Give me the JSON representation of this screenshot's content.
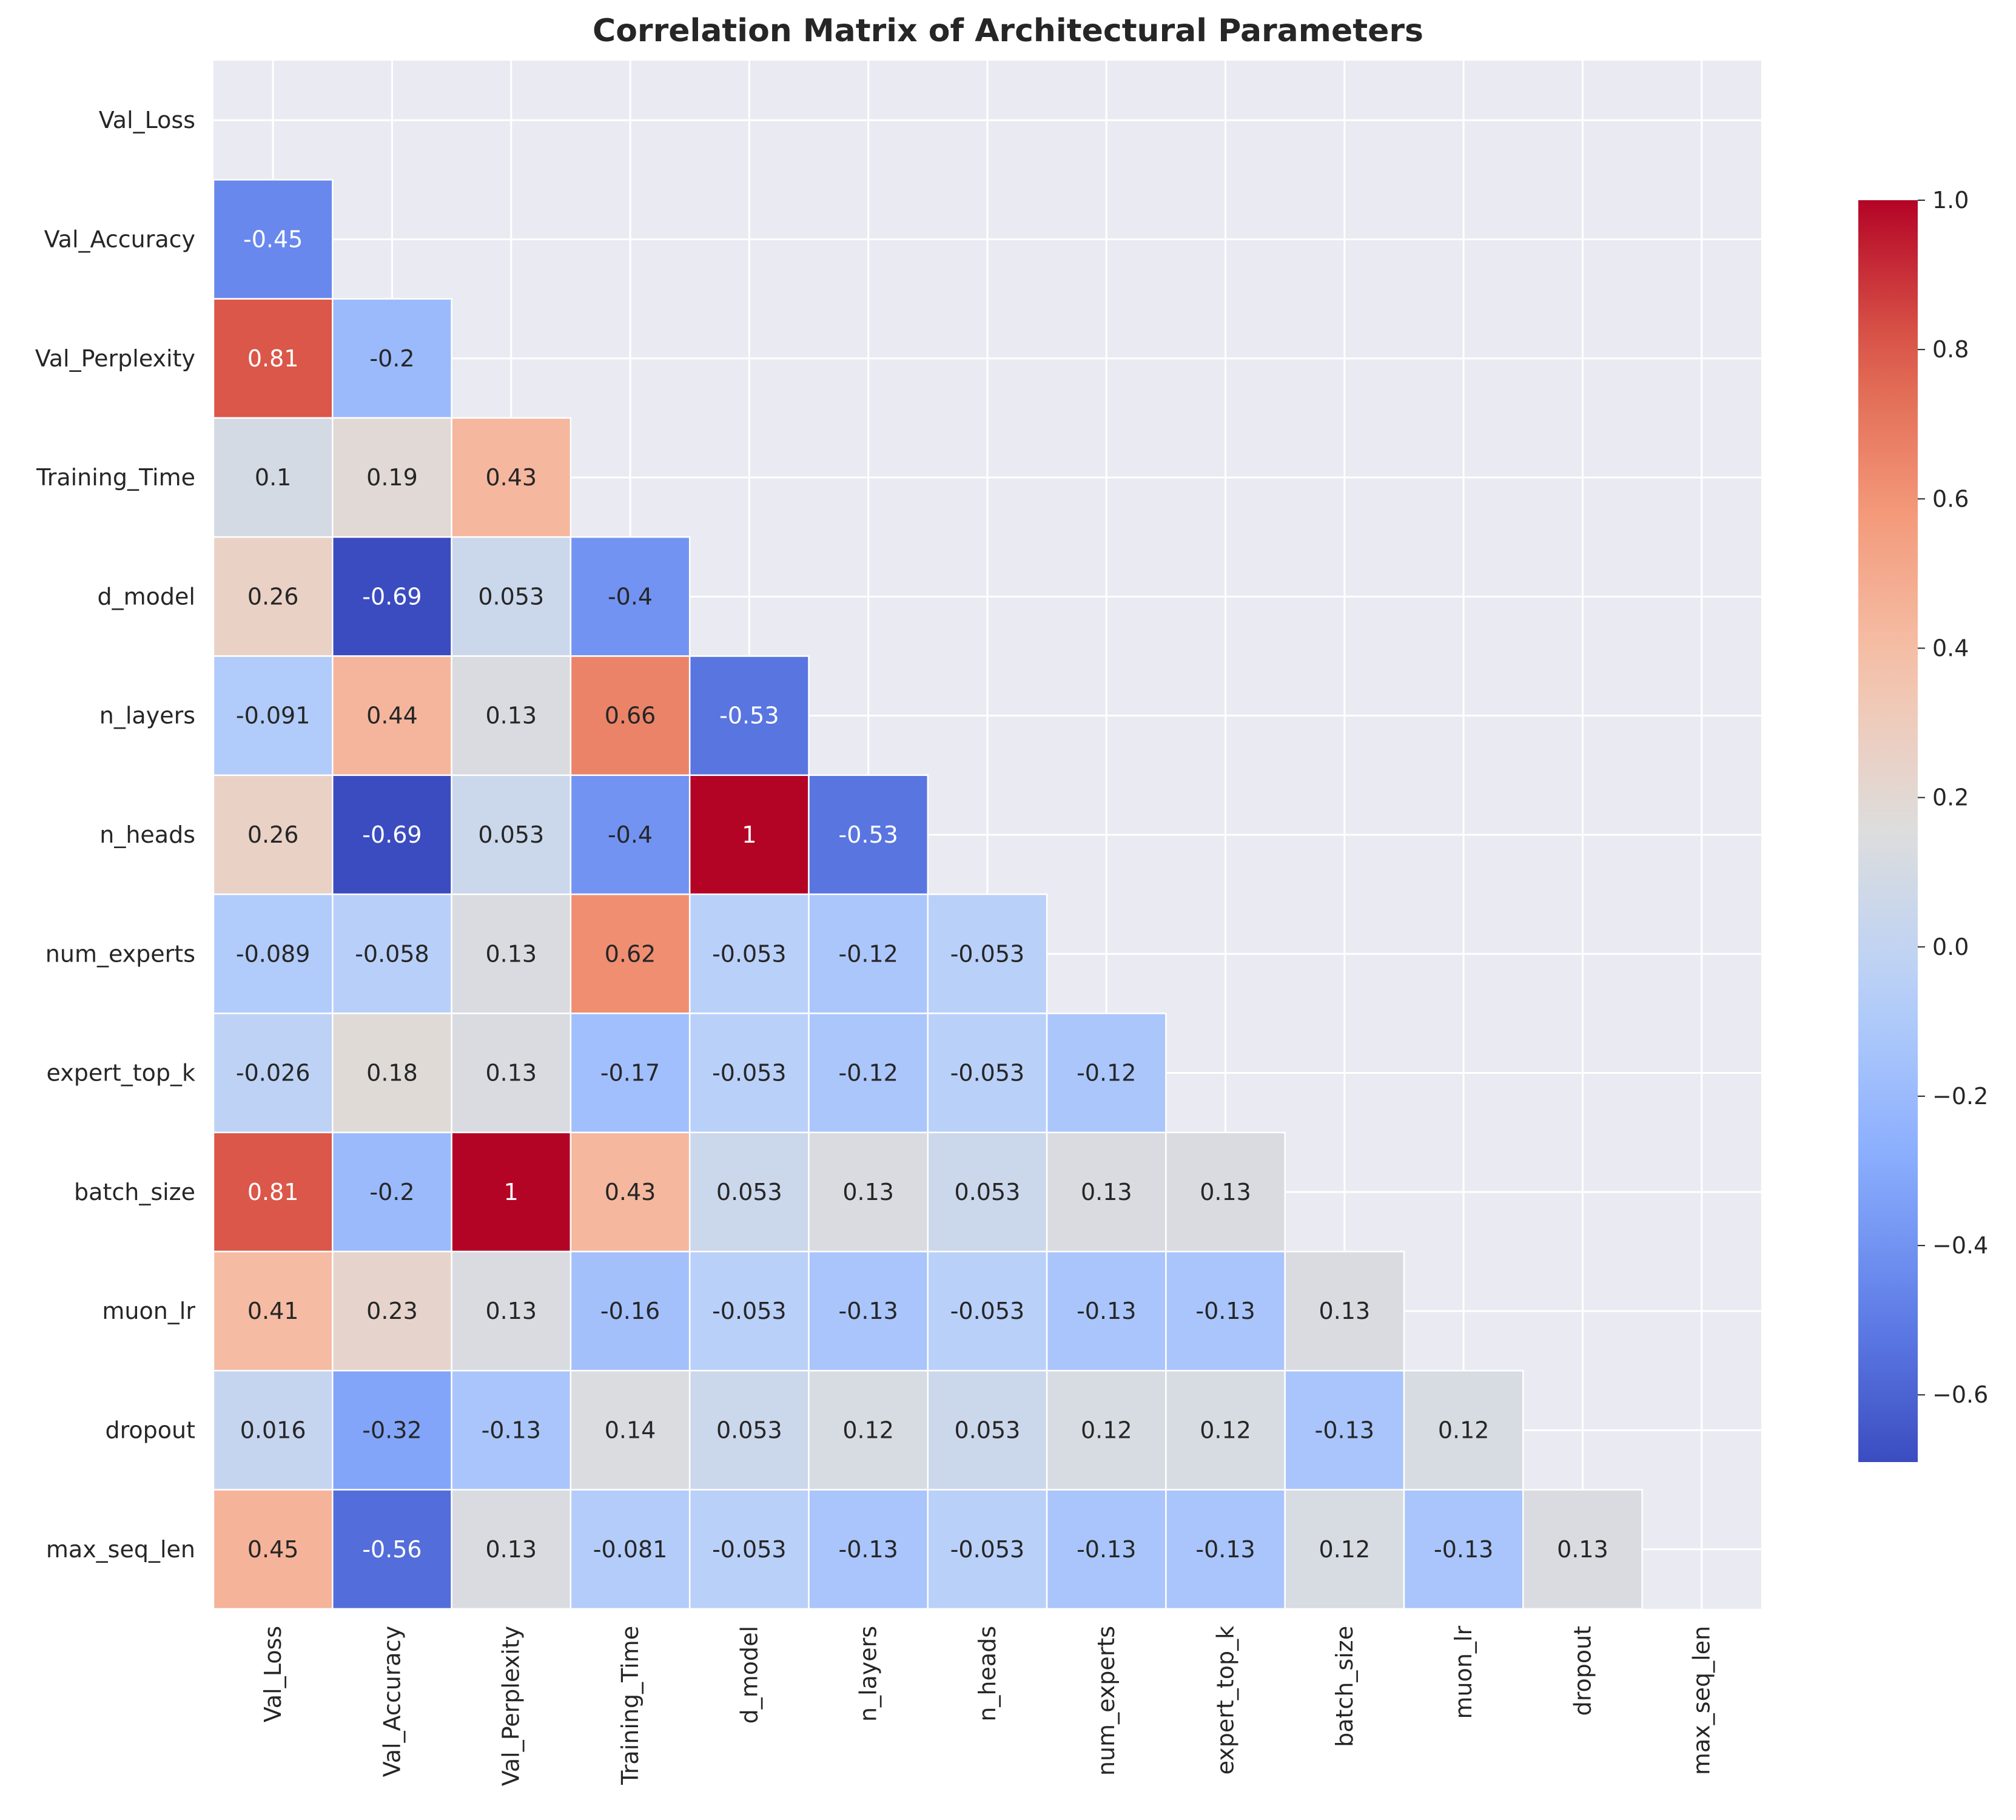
{
  "chart_data": {
    "type": "heatmap",
    "title": "Correlation Matrix of Architectural Parameters",
    "labels": [
      "Val_Loss",
      "Val_Accuracy",
      "Val_Perplexity",
      "Training_Time",
      "d_model",
      "n_layers",
      "n_heads",
      "num_experts",
      "expert_top_k",
      "batch_size",
      "muon_lr",
      "dropout",
      "max_seq_len"
    ],
    "mask": "upper-triangle-including-diagonal",
    "cells": [
      {
        "row": "Val_Accuracy",
        "col": "Val_Loss",
        "value": -0.45,
        "label": "-0.45"
      },
      {
        "row": "Val_Perplexity",
        "col": "Val_Loss",
        "value": 0.81,
        "label": "0.81"
      },
      {
        "row": "Val_Perplexity",
        "col": "Val_Accuracy",
        "value": -0.2,
        "label": "-0.2"
      },
      {
        "row": "Training_Time",
        "col": "Val_Loss",
        "value": 0.1,
        "label": "0.1"
      },
      {
        "row": "Training_Time",
        "col": "Val_Accuracy",
        "value": 0.19,
        "label": "0.19"
      },
      {
        "row": "Training_Time",
        "col": "Val_Perplexity",
        "value": 0.43,
        "label": "0.43"
      },
      {
        "row": "d_model",
        "col": "Val_Loss",
        "value": 0.26,
        "label": "0.26"
      },
      {
        "row": "d_model",
        "col": "Val_Accuracy",
        "value": -0.69,
        "label": "-0.69"
      },
      {
        "row": "d_model",
        "col": "Val_Perplexity",
        "value": 0.053,
        "label": "0.053"
      },
      {
        "row": "d_model",
        "col": "Training_Time",
        "value": -0.4,
        "label": "-0.4"
      },
      {
        "row": "n_layers",
        "col": "Val_Loss",
        "value": -0.091,
        "label": "-0.091"
      },
      {
        "row": "n_layers",
        "col": "Val_Accuracy",
        "value": 0.44,
        "label": "0.44"
      },
      {
        "row": "n_layers",
        "col": "Val_Perplexity",
        "value": 0.13,
        "label": "0.13"
      },
      {
        "row": "n_layers",
        "col": "Training_Time",
        "value": 0.66,
        "label": "0.66"
      },
      {
        "row": "n_layers",
        "col": "d_model",
        "value": -0.53,
        "label": "-0.53"
      },
      {
        "row": "n_heads",
        "col": "Val_Loss",
        "value": 0.26,
        "label": "0.26"
      },
      {
        "row": "n_heads",
        "col": "Val_Accuracy",
        "value": -0.69,
        "label": "-0.69"
      },
      {
        "row": "n_heads",
        "col": "Val_Perplexity",
        "value": 0.053,
        "label": "0.053"
      },
      {
        "row": "n_heads",
        "col": "Training_Time",
        "value": -0.4,
        "label": "-0.4"
      },
      {
        "row": "n_heads",
        "col": "d_model",
        "value": 1,
        "label": "1"
      },
      {
        "row": "n_heads",
        "col": "n_layers",
        "value": -0.53,
        "label": "-0.53"
      },
      {
        "row": "num_experts",
        "col": "Val_Loss",
        "value": -0.089,
        "label": "-0.089"
      },
      {
        "row": "num_experts",
        "col": "Val_Accuracy",
        "value": -0.058,
        "label": "-0.058"
      },
      {
        "row": "num_experts",
        "col": "Val_Perplexity",
        "value": 0.13,
        "label": "0.13"
      },
      {
        "row": "num_experts",
        "col": "Training_Time",
        "value": 0.62,
        "label": "0.62"
      },
      {
        "row": "num_experts",
        "col": "d_model",
        "value": -0.053,
        "label": "-0.053"
      },
      {
        "row": "num_experts",
        "col": "n_layers",
        "value": -0.12,
        "label": "-0.12"
      },
      {
        "row": "num_experts",
        "col": "n_heads",
        "value": -0.053,
        "label": "-0.053"
      },
      {
        "row": "expert_top_k",
        "col": "Val_Loss",
        "value": -0.026,
        "label": "-0.026"
      },
      {
        "row": "expert_top_k",
        "col": "Val_Accuracy",
        "value": 0.18,
        "label": "0.18"
      },
      {
        "row": "expert_top_k",
        "col": "Val_Perplexity",
        "value": 0.13,
        "label": "0.13"
      },
      {
        "row": "expert_top_k",
        "col": "Training_Time",
        "value": -0.17,
        "label": "-0.17"
      },
      {
        "row": "expert_top_k",
        "col": "d_model",
        "value": -0.053,
        "label": "-0.053"
      },
      {
        "row": "expert_top_k",
        "col": "n_layers",
        "value": -0.12,
        "label": "-0.12"
      },
      {
        "row": "expert_top_k",
        "col": "n_heads",
        "value": -0.053,
        "label": "-0.053"
      },
      {
        "row": "expert_top_k",
        "col": "num_experts",
        "value": -0.12,
        "label": "-0.12"
      },
      {
        "row": "batch_size",
        "col": "Val_Loss",
        "value": 0.81,
        "label": "0.81"
      },
      {
        "row": "batch_size",
        "col": "Val_Accuracy",
        "value": -0.2,
        "label": "-0.2"
      },
      {
        "row": "batch_size",
        "col": "Val_Perplexity",
        "value": 1,
        "label": "1"
      },
      {
        "row": "batch_size",
        "col": "Training_Time",
        "value": 0.43,
        "label": "0.43"
      },
      {
        "row": "batch_size",
        "col": "d_model",
        "value": 0.053,
        "label": "0.053"
      },
      {
        "row": "batch_size",
        "col": "n_layers",
        "value": 0.13,
        "label": "0.13"
      },
      {
        "row": "batch_size",
        "col": "n_heads",
        "value": 0.053,
        "label": "0.053"
      },
      {
        "row": "batch_size",
        "col": "num_experts",
        "value": 0.13,
        "label": "0.13"
      },
      {
        "row": "batch_size",
        "col": "expert_top_k",
        "value": 0.13,
        "label": "0.13"
      },
      {
        "row": "muon_lr",
        "col": "Val_Loss",
        "value": 0.41,
        "label": "0.41"
      },
      {
        "row": "muon_lr",
        "col": "Val_Accuracy",
        "value": 0.23,
        "label": "0.23"
      },
      {
        "row": "muon_lr",
        "col": "Val_Perplexity",
        "value": 0.13,
        "label": "0.13"
      },
      {
        "row": "muon_lr",
        "col": "Training_Time",
        "value": -0.16,
        "label": "-0.16"
      },
      {
        "row": "muon_lr",
        "col": "d_model",
        "value": -0.053,
        "label": "-0.053"
      },
      {
        "row": "muon_lr",
        "col": "n_layers",
        "value": -0.13,
        "label": "-0.13"
      },
      {
        "row": "muon_lr",
        "col": "n_heads",
        "value": -0.053,
        "label": "-0.053"
      },
      {
        "row": "muon_lr",
        "col": "num_experts",
        "value": -0.13,
        "label": "-0.13"
      },
      {
        "row": "muon_lr",
        "col": "expert_top_k",
        "value": -0.13,
        "label": "-0.13"
      },
      {
        "row": "muon_lr",
        "col": "batch_size",
        "value": 0.13,
        "label": "0.13"
      },
      {
        "row": "dropout",
        "col": "Val_Loss",
        "value": 0.016,
        "label": "0.016"
      },
      {
        "row": "dropout",
        "col": "Val_Accuracy",
        "value": -0.32,
        "label": "-0.32"
      },
      {
        "row": "dropout",
        "col": "Val_Perplexity",
        "value": -0.13,
        "label": "-0.13"
      },
      {
        "row": "dropout",
        "col": "Training_Time",
        "value": 0.14,
        "label": "0.14"
      },
      {
        "row": "dropout",
        "col": "d_model",
        "value": 0.053,
        "label": "0.053"
      },
      {
        "row": "dropout",
        "col": "n_layers",
        "value": 0.12,
        "label": "0.12"
      },
      {
        "row": "dropout",
        "col": "n_heads",
        "value": 0.053,
        "label": "0.053"
      },
      {
        "row": "dropout",
        "col": "num_experts",
        "value": 0.12,
        "label": "0.12"
      },
      {
        "row": "dropout",
        "col": "expert_top_k",
        "value": 0.12,
        "label": "0.12"
      },
      {
        "row": "dropout",
        "col": "batch_size",
        "value": -0.13,
        "label": "-0.13"
      },
      {
        "row": "dropout",
        "col": "muon_lr",
        "value": 0.12,
        "label": "0.12"
      },
      {
        "row": "max_seq_len",
        "col": "Val_Loss",
        "value": 0.45,
        "label": "0.45"
      },
      {
        "row": "max_seq_len",
        "col": "Val_Accuracy",
        "value": -0.56,
        "label": "-0.56"
      },
      {
        "row": "max_seq_len",
        "col": "Val_Perplexity",
        "value": 0.13,
        "label": "0.13"
      },
      {
        "row": "max_seq_len",
        "col": "Training_Time",
        "value": -0.081,
        "label": "-0.081"
      },
      {
        "row": "max_seq_len",
        "col": "d_model",
        "value": -0.053,
        "label": "-0.053"
      },
      {
        "row": "max_seq_len",
        "col": "n_layers",
        "value": -0.13,
        "label": "-0.13"
      },
      {
        "row": "max_seq_len",
        "col": "n_heads",
        "value": -0.053,
        "label": "-0.053"
      },
      {
        "row": "max_seq_len",
        "col": "num_experts",
        "value": -0.13,
        "label": "-0.13"
      },
      {
        "row": "max_seq_len",
        "col": "expert_top_k",
        "value": -0.13,
        "label": "-0.13"
      },
      {
        "row": "max_seq_len",
        "col": "batch_size",
        "value": 0.12,
        "label": "0.12"
      },
      {
        "row": "max_seq_len",
        "col": "muon_lr",
        "value": -0.13,
        "label": "-0.13"
      },
      {
        "row": "max_seq_len",
        "col": "dropout",
        "value": 0.13,
        "label": "0.13"
      }
    ],
    "colorbar": {
      "colormap": "coolwarm",
      "vmin": -0.69,
      "vmax": 1.0,
      "ticks": [
        1.0,
        0.8,
        0.6,
        0.4,
        0.2,
        0.0,
        -0.2,
        -0.4,
        -0.6
      ],
      "tick_labels": [
        "1.0",
        "0.8",
        "0.6",
        "0.4",
        "0.2",
        "0.0",
        "−0.2",
        "−0.4",
        "−0.6"
      ]
    },
    "grid": true,
    "background_color": "#eaeaf2",
    "grid_color": "#ffffff"
  }
}
